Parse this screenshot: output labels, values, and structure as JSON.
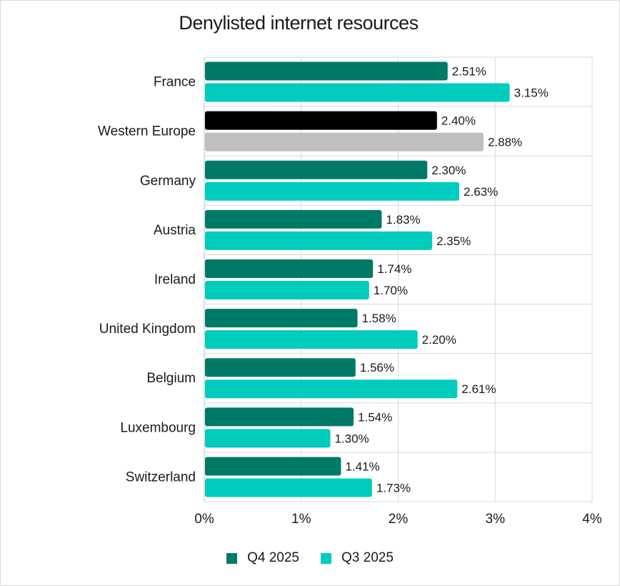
{
  "chart_data": {
    "type": "bar",
    "orientation": "horizontal",
    "title": "Denylisted internet resources",
    "categories": [
      "France",
      "Western Europe",
      "Germany",
      "Austria",
      "Ireland",
      "United Kingdom",
      "Belgium",
      "Luxembourg",
      "Switzerland"
    ],
    "series": [
      {
        "name": "Q4 2025",
        "color": "#007A68",
        "values": [
          2.51,
          2.4,
          2.3,
          1.83,
          1.74,
          1.58,
          1.56,
          1.54,
          1.41
        ],
        "labels": [
          "2.51%",
          "2.40%",
          "2.30%",
          "1.83%",
          "1.74%",
          "1.58%",
          "1.56%",
          "1.54%",
          "1.41%"
        ]
      },
      {
        "name": "Q3 2025",
        "color": "#00CCBE",
        "values": [
          3.15,
          2.88,
          2.63,
          2.35,
          1.7,
          2.2,
          2.61,
          1.3,
          1.73
        ],
        "labels": [
          "3.15%",
          "2.88%",
          "2.63%",
          "2.35%",
          "1.70%",
          "2.20%",
          "2.61%",
          "1.30%",
          "1.73%"
        ]
      }
    ],
    "highlight": {
      "category": "Western Europe",
      "colors": [
        "#000000",
        "#BFBFBF"
      ]
    },
    "xlim": [
      0,
      4
    ],
    "xticks": [
      0,
      1,
      2,
      3,
      4
    ],
    "xtick_labels": [
      "0%",
      "1%",
      "2%",
      "3%",
      "4%"
    ],
    "grid": true,
    "legend_position": "bottom"
  }
}
